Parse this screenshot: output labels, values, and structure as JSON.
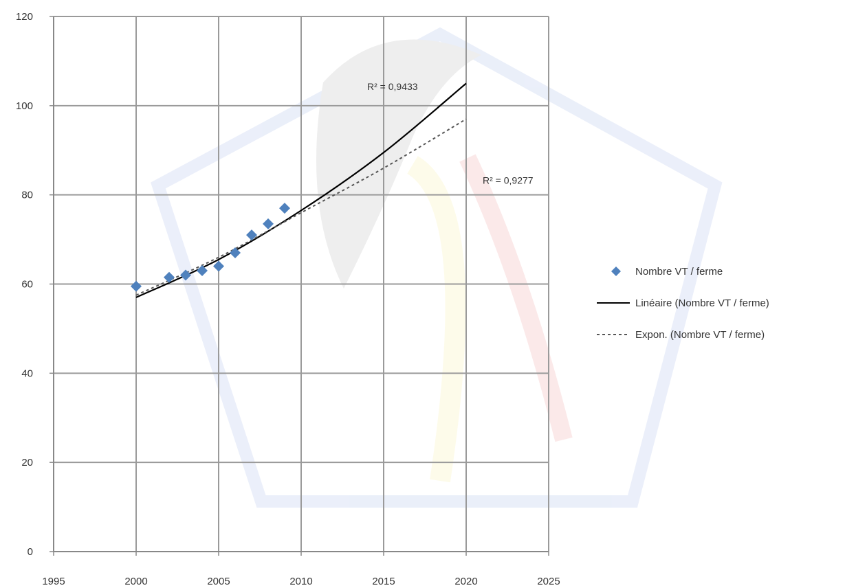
{
  "chart_data": {
    "type": "scatter",
    "title": "",
    "xlabel": "",
    "ylabel": "",
    "xlim": [
      1995,
      2025
    ],
    "ylim": [
      0,
      120
    ],
    "grid": true,
    "legend_position": "right",
    "x_ticks": [
      "1995",
      "2000",
      "2005",
      "2010",
      "2015",
      "2020",
      "2025"
    ],
    "y_ticks": [
      "0",
      "20",
      "40",
      "60",
      "80",
      "100",
      "120"
    ],
    "series": [
      {
        "name": "Nombre VT / ferme",
        "kind": "points",
        "color": "#4f81bd",
        "x": [
          2000,
          2002,
          2003,
          2004,
          2005,
          2006,
          2007,
          2008,
          2009
        ],
        "y": [
          59.5,
          61.5,
          62,
          63,
          64,
          67,
          71,
          73.5,
          77
        ]
      },
      {
        "name": "Linéaire (Nombre VT / ferme)",
        "kind": "trendline",
        "color": "#000000",
        "dashed": false,
        "x": [
          2000,
          2005,
          2010,
          2015,
          2020
        ],
        "y": [
          57,
          65.5,
          76.5,
          89.5,
          105
        ]
      },
      {
        "name": "Expon. (Nombre VT / ferme)",
        "kind": "trendline",
        "color": "#555555",
        "dashed": true,
        "x": [
          2000,
          2005,
          2010,
          2015,
          2020
        ],
        "y": [
          57.5,
          66,
          76,
          86,
          97
        ]
      }
    ],
    "annotations": [
      {
        "text": "R² = 0,9433",
        "x": 2014,
        "y": 103.5
      },
      {
        "text": "R² = 0,9277",
        "x": 2021,
        "y": 82.5
      }
    ]
  }
}
